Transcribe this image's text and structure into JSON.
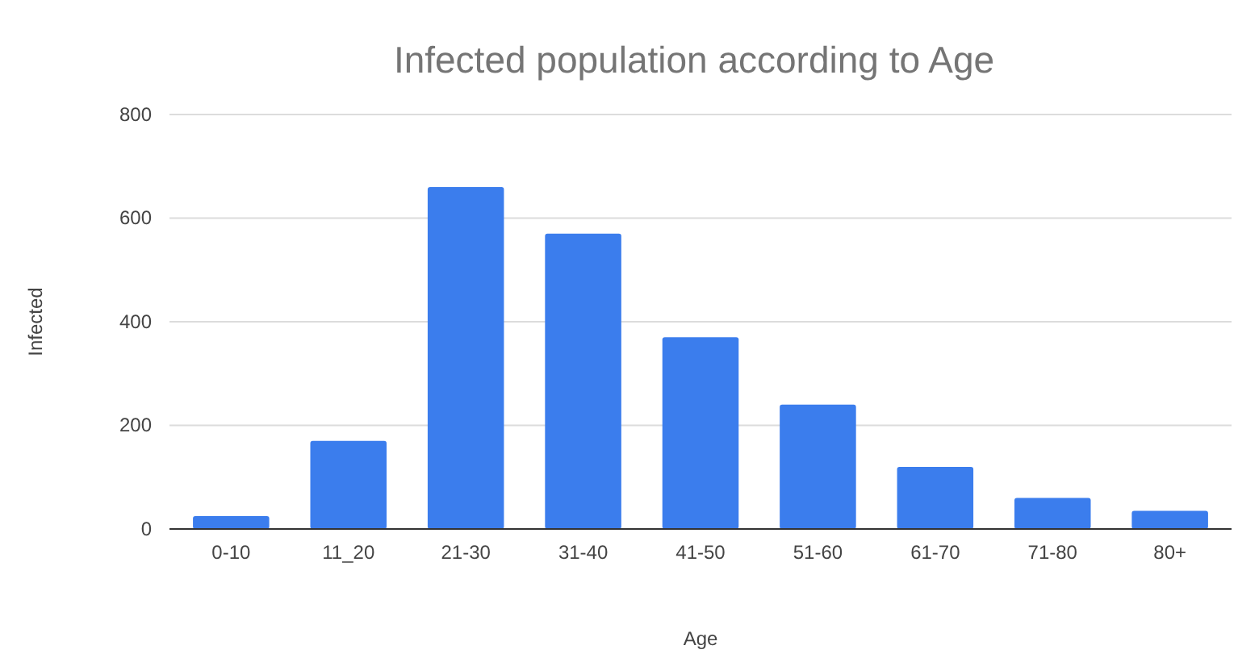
{
  "chart_data": {
    "type": "bar",
    "title": "Infected population according to Age",
    "xlabel": "Age",
    "ylabel": "Infected",
    "categories": [
      "0-10",
      "11_20",
      "21-30",
      "31-40",
      "41-50",
      "51-60",
      "61-70",
      "71-80",
      "80+"
    ],
    "values": [
      25,
      170,
      660,
      570,
      370,
      240,
      120,
      60,
      35
    ],
    "color": "#3b7ded",
    "ylim": [
      0,
      800
    ],
    "yticks": [
      0,
      200,
      400,
      600,
      800
    ],
    "grid": "y"
  }
}
